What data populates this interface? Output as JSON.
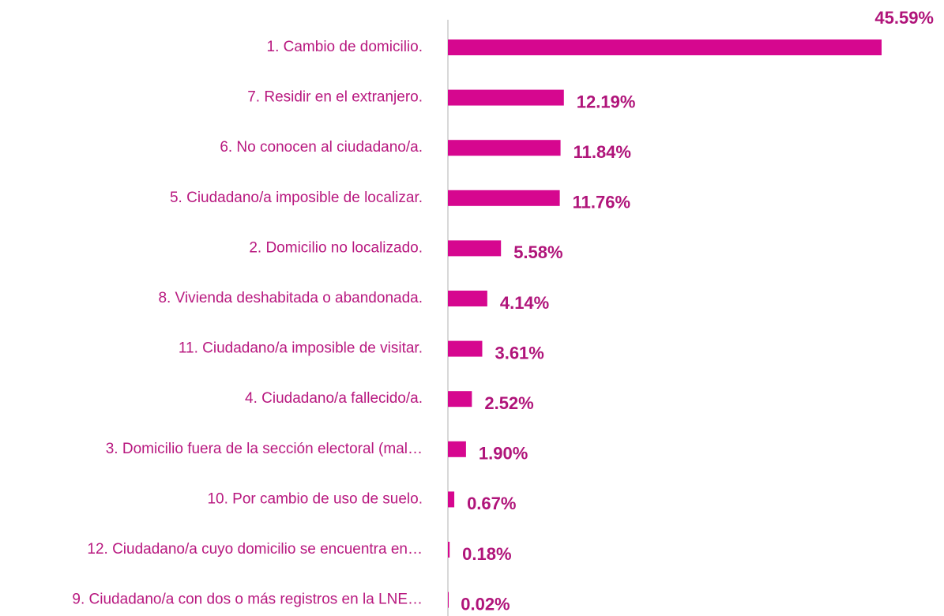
{
  "chart_data": {
    "type": "bar",
    "orientation": "horizontal",
    "color": "#d6078f",
    "categories": [
      "1. Cambio de domicilio.",
      "7. Residir en el extranjero.",
      "6. No conocen al ciudadano/a.",
      "5. Ciudadano/a imposible de localizar.",
      "2. Domicilio no localizado.",
      "8. Vivienda deshabitada o abandonada.",
      "11. Ciudadano/a imposible de visitar.",
      "4. Ciudadano/a fallecido/a.",
      "3. Domicilio fuera de la sección electoral (mal…",
      "10. Por cambio de uso de suelo.",
      "12. Ciudadano/a cuyo domicilio se encuentra en…",
      "9. Ciudadano/a con dos o más registros en la LNE…"
    ],
    "values": [
      45.59,
      12.19,
      11.84,
      11.76,
      5.58,
      4.14,
      3.61,
      2.52,
      1.9,
      0.67,
      0.18,
      0.02
    ],
    "value_labels": [
      "45.59%",
      "12.19%",
      "11.84%",
      "11.76%",
      "5.58%",
      "4.14%",
      "3.61%",
      "2.52%",
      "1.90%",
      "0.67%",
      "0.18%",
      "0.02%"
    ]
  }
}
